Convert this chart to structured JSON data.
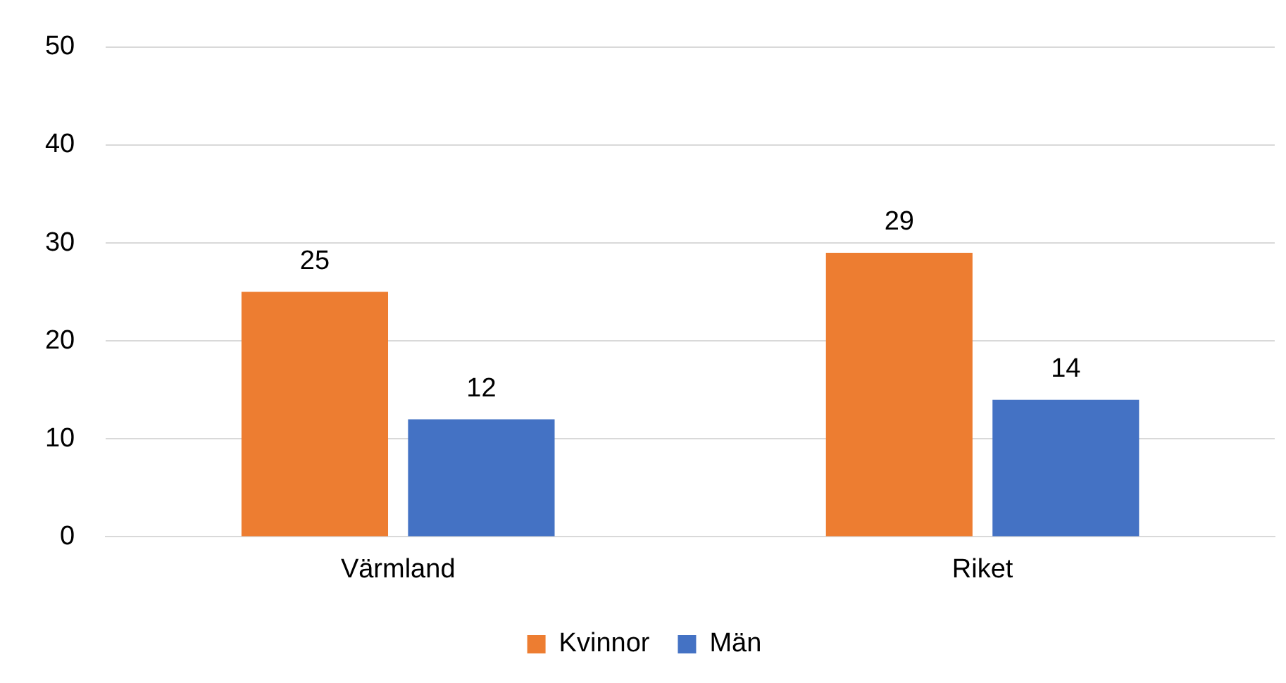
{
  "chart_data": {
    "type": "bar",
    "categories": [
      "Värmland",
      "Riket"
    ],
    "series": [
      {
        "name": "Kvinnor",
        "color": "#ed7d31",
        "values": [
          25,
          29
        ]
      },
      {
        "name": "Män",
        "color": "#4472c4",
        "values": [
          12,
          14
        ]
      }
    ],
    "ylim": [
      0,
      50
    ],
    "yticks": [
      0,
      10,
      20,
      30,
      40,
      50
    ],
    "grid": "y",
    "legend": "bottom",
    "data_labels": true
  }
}
